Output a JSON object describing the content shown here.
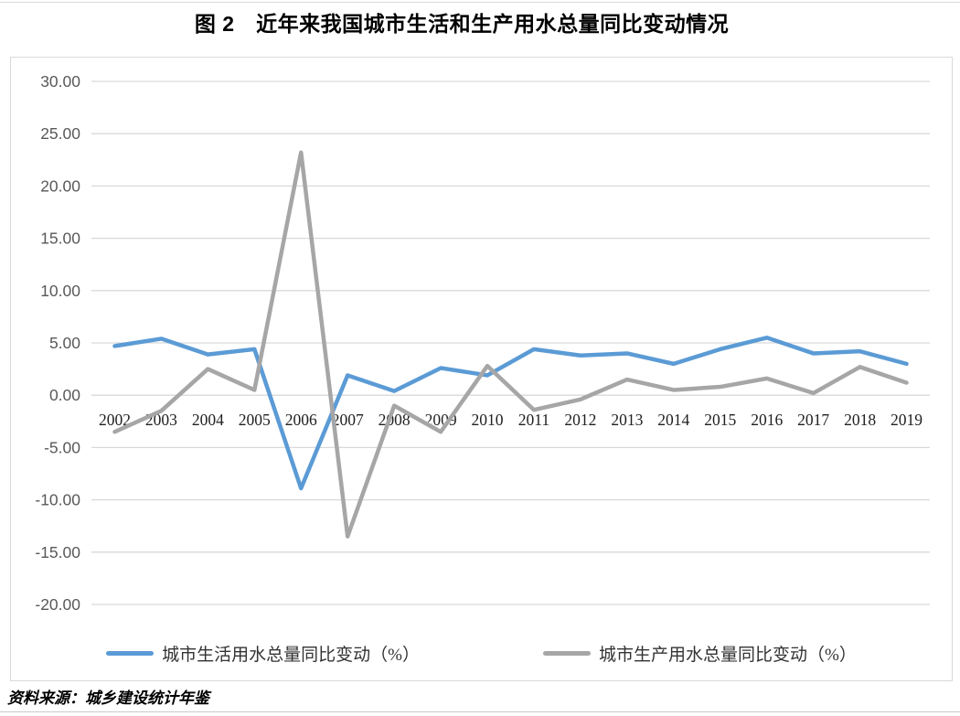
{
  "page": {
    "source_note": "资料来源：城乡建设统计年鉴"
  },
  "chart_data": {
    "type": "line",
    "title": "图 2　近年来我国城市生活和生产用水总量同比变动情况",
    "categories": [
      "2002",
      "2003",
      "2004",
      "2005",
      "2006",
      "2007",
      "2008",
      "2009",
      "2010",
      "2011",
      "2012",
      "2013",
      "2014",
      "2015",
      "2016",
      "2017",
      "2018",
      "2019"
    ],
    "series": [
      {
        "name": "城市生活用水总量同比变动（%）",
        "color": "#5B9BD5",
        "values": [
          4.7,
          5.4,
          3.9,
          4.4,
          -8.9,
          1.9,
          0.4,
          2.6,
          1.9,
          4.4,
          3.8,
          4.0,
          3.0,
          4.4,
          5.5,
          4.0,
          4.2,
          3.0
        ]
      },
      {
        "name": "城市生产用水总量同比变动（%）",
        "color": "#A6A6A6",
        "values": [
          -3.5,
          -1.5,
          2.5,
          0.5,
          23.2,
          -13.5,
          -1.0,
          -3.5,
          2.8,
          -1.4,
          -0.4,
          1.5,
          0.5,
          0.8,
          1.6,
          0.2,
          2.7,
          1.2
        ]
      }
    ],
    "xlabel": "",
    "ylabel": "",
    "ylim": [
      -20,
      30
    ],
    "ytick_step": 5,
    "ytick_labels": [
      "30.00",
      "25.00",
      "20.00",
      "15.00",
      "10.00",
      "5.00",
      "0.00",
      "-5.00",
      "-10.00",
      "-15.00",
      "-20.00"
    ],
    "grid": true,
    "legend_position": "bottom",
    "colors": {
      "grid": "#D9D9D9",
      "ytick_text": "#595959",
      "category_text": "#1f1f1f",
      "frame_border": "#D9D9D9"
    }
  }
}
